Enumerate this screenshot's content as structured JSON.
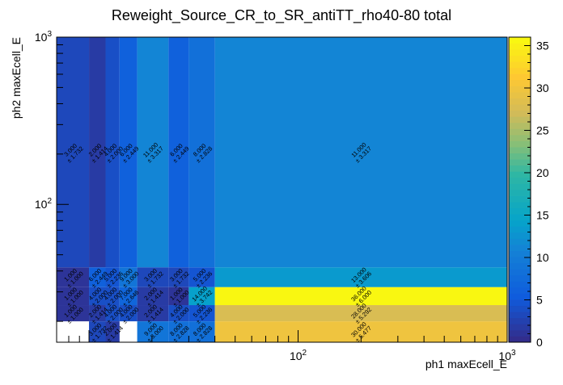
{
  "chart_data": {
    "type": "heatmap",
    "title": "Reweight_Source_CR_to_SR_antiTT_rho40-80 total",
    "xlabel": "ph1 maxEcell_E",
    "ylabel": "ph2 maxEcell_E",
    "x_scale": "log",
    "y_scale": "log",
    "xlim": [
      7,
      1000
    ],
    "ylim": [
      15,
      1000
    ],
    "x_tick_labels": [
      {
        "value": 100,
        "base": "10",
        "exp": "2"
      },
      {
        "value": 1000,
        "base": "10",
        "exp": "3"
      }
    ],
    "y_tick_labels": [
      {
        "value": 100,
        "base": "10",
        "exp": "2"
      },
      {
        "value": 1000,
        "base": "10",
        "exp": "3"
      }
    ],
    "x_bin_edges": [
      7,
      10,
      12,
      14,
      17,
      24,
      30,
      40,
      1000
    ],
    "y_bin_edges": [
      15,
      20,
      25,
      32,
      42,
      1000
    ],
    "colorbar": {
      "min": 0,
      "max": 36,
      "ticks": [
        0,
        5,
        10,
        15,
        20,
        25,
        30,
        35
      ],
      "stops": [
        [
          0.0,
          "#352a87"
        ],
        [
          0.15,
          "#0f5cdd"
        ],
        [
          0.3,
          "#1481d6"
        ],
        [
          0.4,
          "#06a4ca"
        ],
        [
          0.55,
          "#2eb7a4"
        ],
        [
          0.65,
          "#87bf77"
        ],
        [
          0.75,
          "#d1bb59"
        ],
        [
          0.87,
          "#fec832"
        ],
        [
          1.0,
          "#f9fb0e"
        ]
      ]
    },
    "cells": [
      {
        "ix": 0,
        "iy": 4,
        "value": 3.0,
        "label": "3.000",
        "error": "± 1.732"
      },
      {
        "ix": 1,
        "iy": 4,
        "value": 2.0,
        "label": "2.000",
        "error": "± 1.414"
      },
      {
        "ix": 2,
        "iy": 4,
        "value": 4.0,
        "label": "4.000",
        "error": "± 2.000"
      },
      {
        "ix": 3,
        "iy": 4,
        "value": 6.0,
        "label": "6.000",
        "error": "± 2.449"
      },
      {
        "ix": 4,
        "iy": 4,
        "value": 11.0,
        "label": "11.000",
        "error": "± 3.317"
      },
      {
        "ix": 5,
        "iy": 4,
        "value": 6.0,
        "label": "6.000",
        "error": "± 2.449"
      },
      {
        "ix": 6,
        "iy": 4,
        "value": 8.0,
        "label": "8.000",
        "error": "± 2.828"
      },
      {
        "ix": 7,
        "iy": 4,
        "value": 11.0,
        "label": "11.000",
        "error": "± 3.317"
      },
      {
        "ix": 0,
        "iy": 3,
        "value": 1.0,
        "label": "1.000",
        "error": "± 1.000"
      },
      {
        "ix": 1,
        "iy": 3,
        "value": 6.0,
        "label": "6.000",
        "error": "± 2.449"
      },
      {
        "ix": 2,
        "iy": 3,
        "value": 5.0,
        "label": "5.000",
        "error": "± 2.236"
      },
      {
        "ix": 3,
        "iy": 3,
        "value": 9.0,
        "label": "9.000",
        "error": "± 3.000"
      },
      {
        "ix": 4,
        "iy": 3,
        "value": 3.0,
        "label": "3.000",
        "error": "± 1.732"
      },
      {
        "ix": 5,
        "iy": 3,
        "value": 3.0,
        "label": "3.000",
        "error": "± 1.732"
      },
      {
        "ix": 6,
        "iy": 3,
        "value": 5.0,
        "label": "5.000",
        "error": "± 2.236"
      },
      {
        "ix": 7,
        "iy": 3,
        "value": 13.0,
        "label": "13.000",
        "error": "± 3.606"
      },
      {
        "ix": 0,
        "iy": 2,
        "value": 1.0,
        "label": "1.000",
        "error": "± 1.000"
      },
      {
        "ix": 1,
        "iy": 2,
        "value": 4.0,
        "label": "4.000",
        "error": "± 2.000"
      },
      {
        "ix": 2,
        "iy": 2,
        "value": 4.0,
        "label": "4.000",
        "error": "± 2.000"
      },
      {
        "ix": 3,
        "iy": 2,
        "value": 7.0,
        "label": "7.000",
        "error": "± 2.646"
      },
      {
        "ix": 4,
        "iy": 2,
        "value": 2.0,
        "label": "2.000",
        "error": "± 1.414"
      },
      {
        "ix": 5,
        "iy": 2,
        "value": 1.0,
        "label": "1.000",
        "error": "± 1.000"
      },
      {
        "ix": 6,
        "iy": 2,
        "value": 14.0,
        "label": "14.000",
        "error": "± 3.742"
      },
      {
        "ix": 7,
        "iy": 2,
        "value": 36.0,
        "label": "36.000",
        "error": "± 6.000"
      },
      {
        "ix": 0,
        "iy": 1,
        "value": 1.0,
        "label": "1.000",
        "error": "± 1.000"
      },
      {
        "ix": 1,
        "iy": 1,
        "value": 2.0,
        "label": "2.000",
        "error": "± 1.414"
      },
      {
        "ix": 2,
        "iy": 1,
        "value": 4.0,
        "label": "4.000",
        "error": "± 2.000"
      },
      {
        "ix": 3,
        "iy": 1,
        "value": 4.0,
        "label": "4.000",
        "error": "± 2.000"
      },
      {
        "ix": 4,
        "iy": 1,
        "value": 2.0,
        "label": "2.000",
        "error": "± 1.414"
      },
      {
        "ix": 5,
        "iy": 1,
        "value": 4.0,
        "label": "4.000",
        "error": "± 2.000"
      },
      {
        "ix": 6,
        "iy": 1,
        "value": 5.0,
        "label": "5.000",
        "error": "± 2.236"
      },
      {
        "ix": 7,
        "iy": 1,
        "value": 28.0,
        "label": "28.000",
        "error": "± 5.292"
      },
      {
        "ix": 1,
        "iy": 0,
        "value": 3.0,
        "label": "3.000",
        "error": "± 1.732"
      },
      {
        "ix": 2,
        "iy": 0,
        "value": 2.0,
        "label": "2.000",
        "error": "± 1.414"
      },
      {
        "ix": 4,
        "iy": 0,
        "value": 9.0,
        "label": "9.000",
        "error": "± 3.000"
      },
      {
        "ix": 5,
        "iy": 0,
        "value": 8.0,
        "label": "8.000",
        "error": "± 2.828"
      },
      {
        "ix": 6,
        "iy": 0,
        "value": 8.0,
        "label": "8.000",
        "error": "± 2.828"
      },
      {
        "ix": 7,
        "iy": 0,
        "value": 30.0,
        "label": "30.000",
        "error": "± 5.477"
      }
    ]
  }
}
